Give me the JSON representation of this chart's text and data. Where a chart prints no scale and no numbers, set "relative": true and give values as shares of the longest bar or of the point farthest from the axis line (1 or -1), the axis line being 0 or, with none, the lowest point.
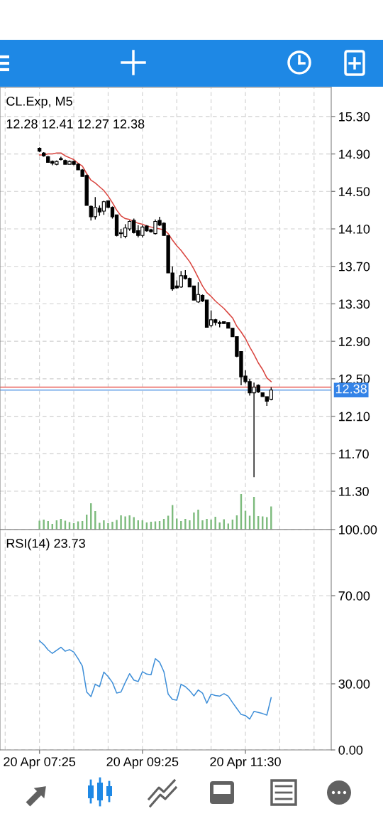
{
  "chart_data": [
    {
      "type": "candlestick",
      "title": "CL.Exp, M5",
      "subtitle": "12.28 12.41 12.27 12.38",
      "categories": [
        null,
        null,
        null,
        null,
        null,
        null,
        null,
        null,
        null,
        null,
        null,
        null,
        null,
        null,
        null,
        null,
        null,
        null,
        null,
        null,
        null,
        null,
        null,
        null,
        null,
        null,
        null,
        null,
        null,
        null,
        null,
        null,
        null,
        null,
        null,
        null,
        null,
        null,
        null,
        null,
        null,
        null,
        null,
        null,
        null,
        null,
        null,
        null,
        null,
        null,
        null,
        null,
        null,
        null,
        null
      ],
      "ohlc": [
        [
          14.96,
          14.97,
          14.92,
          14.93
        ],
        [
          14.91,
          14.92,
          14.87,
          14.88
        ],
        [
          14.87,
          14.88,
          14.81,
          14.81
        ],
        [
          14.82,
          14.83,
          14.78,
          14.8
        ],
        [
          14.79,
          14.83,
          14.78,
          14.82
        ],
        [
          14.85,
          14.87,
          14.83,
          14.84
        ],
        [
          14.83,
          14.84,
          14.79,
          14.79
        ],
        [
          14.79,
          14.83,
          14.79,
          14.82
        ],
        [
          14.82,
          14.83,
          14.78,
          14.79
        ],
        [
          14.79,
          14.8,
          14.73,
          14.73
        ],
        [
          14.73,
          14.74,
          14.66,
          14.66
        ],
        [
          14.67,
          14.68,
          14.35,
          14.35
        ],
        [
          14.34,
          14.35,
          14.19,
          14.23
        ],
        [
          14.23,
          14.44,
          14.2,
          14.33
        ],
        [
          14.32,
          14.35,
          14.24,
          14.28
        ],
        [
          14.29,
          14.4,
          14.25,
          14.39
        ],
        [
          14.4,
          14.4,
          14.32,
          14.33
        ],
        [
          14.33,
          14.34,
          14.21,
          14.23
        ],
        [
          14.25,
          14.25,
          14.02,
          14.03
        ],
        [
          14.05,
          14.1,
          14.0,
          14.06
        ],
        [
          14.02,
          14.15,
          14.0,
          14.11
        ],
        [
          14.1,
          14.19,
          14.08,
          14.18
        ],
        [
          14.19,
          14.21,
          14.05,
          14.06
        ],
        [
          14.08,
          14.14,
          14.01,
          14.03
        ],
        [
          14.03,
          14.14,
          14.01,
          14.12
        ],
        [
          14.13,
          14.14,
          14.07,
          14.08
        ],
        [
          14.09,
          14.1,
          14.06,
          14.07
        ],
        [
          14.05,
          14.2,
          14.04,
          14.18
        ],
        [
          14.19,
          14.23,
          14.13,
          14.14
        ],
        [
          14.16,
          14.17,
          14.03,
          14.03
        ],
        [
          14.03,
          14.03,
          13.63,
          13.63
        ],
        [
          13.63,
          13.7,
          13.44,
          13.46
        ],
        [
          13.49,
          13.55,
          13.46,
          13.47
        ],
        [
          13.48,
          13.65,
          13.47,
          13.6
        ],
        [
          13.6,
          13.66,
          13.56,
          13.57
        ],
        [
          13.57,
          13.58,
          13.48,
          13.48
        ],
        [
          13.49,
          13.49,
          13.34,
          13.34
        ],
        [
          13.32,
          13.53,
          13.31,
          13.4
        ],
        [
          13.39,
          13.4,
          13.32,
          13.33
        ],
        [
          13.34,
          13.34,
          13.05,
          13.05
        ],
        [
          13.07,
          13.23,
          13.05,
          13.13
        ],
        [
          13.13,
          13.14,
          13.07,
          13.1
        ],
        [
          13.1,
          13.12,
          13.05,
          13.09
        ],
        [
          13.11,
          13.11,
          13.09,
          13.09
        ],
        [
          13.1,
          13.1,
          13.04,
          13.04
        ],
        [
          13.04,
          13.04,
          12.95,
          12.95
        ],
        [
          12.95,
          12.95,
          12.73,
          12.74
        ],
        [
          12.79,
          12.79,
          12.43,
          12.52
        ],
        [
          12.53,
          12.59,
          12.45,
          12.47
        ],
        [
          12.47,
          12.5,
          12.32,
          12.35
        ],
        [
          12.35,
          12.46,
          11.45,
          12.41
        ],
        [
          12.43,
          12.44,
          12.35,
          12.36
        ],
        [
          12.35,
          12.35,
          12.31,
          12.31
        ],
        [
          12.31,
          12.31,
          12.21,
          12.26
        ],
        [
          12.28,
          12.41,
          12.27,
          12.38
        ]
      ],
      "series": [
        {
          "type": "line",
          "color": "#d9453f",
          "values": [
            14.89,
            14.89,
            14.9,
            14.9,
            14.91,
            14.91,
            14.88,
            14.86,
            14.84,
            14.8,
            14.77,
            14.69,
            14.62,
            14.59,
            14.55,
            14.51,
            14.45,
            14.38,
            14.3,
            14.24,
            14.21,
            14.2,
            14.18,
            14.16,
            14.15,
            14.13,
            14.12,
            14.11,
            14.1,
            14.09,
            14.05,
            13.98,
            13.92,
            13.87,
            13.81,
            13.75,
            13.67,
            13.58,
            13.49,
            13.42,
            13.38,
            13.33,
            13.29,
            13.25,
            13.2,
            13.15,
            13.06,
            13.0,
            12.93,
            12.84,
            12.76,
            12.67,
            12.6,
            12.51,
            12.47
          ]
        }
      ],
      "ylim": [
        11.27,
        15.61
      ],
      "yticks": [
        {
          "value": 11.3,
          "label": "11.30"
        },
        {
          "value": 11.7,
          "label": "11.70"
        },
        {
          "value": 12.1,
          "label": "12.10"
        },
        {
          "value": 12.5,
          "label": "12.50"
        },
        {
          "value": 12.9,
          "label": "12.90"
        },
        {
          "value": 13.3,
          "label": "13.30"
        },
        {
          "value": 13.7,
          "label": "13.70"
        },
        {
          "value": 14.1,
          "label": "14.10"
        },
        {
          "value": 14.5,
          "label": "14.50"
        },
        {
          "value": 14.9,
          "label": "14.90"
        },
        {
          "value": 15.3,
          "label": "15.30"
        }
      ],
      "grid": true,
      "tick_labels": "y",
      "ref_lines": [
        {
          "axis": "y",
          "value": 12.41,
          "color": "#ee8884"
        },
        {
          "axis": "y",
          "value": 12.38,
          "label": "12.38",
          "color": "#8db8ee"
        }
      ]
    },
    {
      "type": "bar",
      "categories": [
        null,
        null,
        null,
        null,
        null,
        null,
        null,
        null,
        null,
        null,
        null,
        null,
        null,
        null,
        null,
        null,
        null,
        null,
        null,
        null,
        null,
        null,
        null,
        null,
        null,
        null,
        null,
        null,
        null,
        null,
        null,
        null,
        null,
        null,
        null,
        null,
        null,
        null,
        null,
        null,
        null,
        null,
        null,
        null,
        null,
        null,
        null,
        null,
        null,
        null,
        null,
        null,
        null,
        null,
        null
      ],
      "values": [
        0.25,
        0.28,
        0.24,
        0.16,
        0.26,
        0.3,
        0.25,
        0.21,
        0.18,
        0.23,
        0.24,
        0.42,
        0.74,
        0.52,
        0.19,
        0.26,
        0.18,
        0.22,
        0.27,
        0.4,
        0.37,
        0.4,
        0.35,
        0.26,
        0.26,
        0.2,
        0.22,
        0.23,
        0.24,
        0.3,
        0.39,
        0.69,
        0.31,
        0.24,
        0.3,
        0.26,
        0.48,
        0.56,
        0.26,
        0.3,
        0.28,
        0.36,
        0.2,
        0.29,
        0.17,
        0.28,
        0.4,
        1,
        0.53,
        0.39,
        0.92,
        0.38,
        0.37,
        0.35,
        0.65
      ],
      "color": "#7dbb7d",
      "relative": true,
      "tick_labels": false,
      "grid": "x"
    },
    {
      "type": "line",
      "title": "RSI(14) 23.73",
      "categories": [
        "20 Apr 07:25",
        null,
        null,
        null,
        null,
        null,
        null,
        null,
        null,
        null,
        null,
        null,
        null,
        null,
        null,
        null,
        null,
        null,
        null,
        null,
        null,
        null,
        null,
        null,
        "20 Apr 09:25",
        null,
        null,
        null,
        null,
        null,
        null,
        null,
        null,
        null,
        null,
        null,
        null,
        null,
        null,
        null,
        null,
        null,
        null,
        null,
        null,
        null,
        null,
        null,
        "20 Apr 11:30",
        null,
        null,
        null,
        null,
        null,
        null
      ],
      "series": [
        {
          "color": "#3f8fd8",
          "values": [
            49.5,
            47.8,
            45.4,
            43.8,
            45.2,
            46.6,
            44.8,
            45.5,
            44.4,
            41.4,
            38.0,
            26.3,
            24.2,
            29.8,
            28.7,
            35.3,
            33.3,
            30.6,
            25.8,
            26.3,
            30.6,
            34.6,
            31.7,
            31.0,
            35.5,
            34.4,
            34.1,
            41.4,
            39.8,
            35.5,
            25.3,
            22.9,
            22.6,
            29.8,
            28.7,
            26.9,
            24.5,
            27.2,
            25.8,
            21.2,
            25.3,
            24.7,
            24.4,
            25.5,
            24.4,
            21.5,
            18.8,
            16.1,
            15.6,
            14.0,
            17.5,
            17.0,
            16.5,
            15.8,
            23.7
          ]
        }
      ],
      "ylim": [
        0,
        100
      ],
      "yticks": [
        {
          "value": 0,
          "label": "0.00"
        },
        {
          "value": 30,
          "label": "30.00"
        },
        {
          "value": 70,
          "label": "70.00"
        },
        {
          "value": 100,
          "label": "100.00"
        }
      ],
      "grid": true
    }
  ]
}
